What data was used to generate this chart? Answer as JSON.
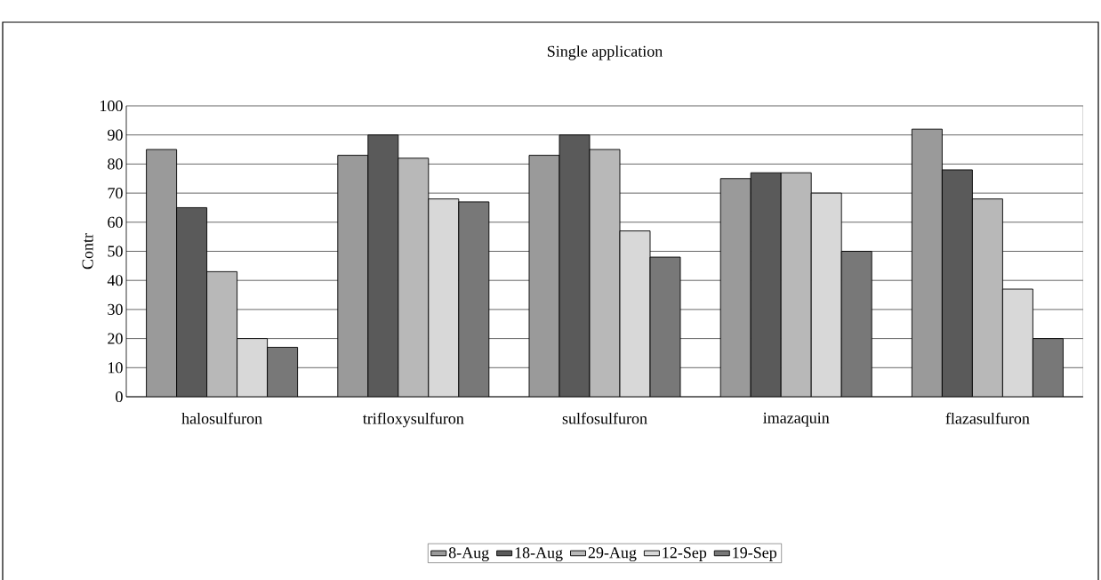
{
  "chart_data": {
    "type": "bar",
    "title": "Single application",
    "ylabel": "Contr",
    "categories": [
      "halosulfuron",
      "trifloxysulfuron",
      "sulfosulfuron",
      "imazaquin",
      "flazasulfuron"
    ],
    "series": [
      {
        "name": "8-Aug",
        "color": "#9a9a9a",
        "values": [
          85,
          83,
          83,
          75,
          92
        ]
      },
      {
        "name": "18-Aug",
        "color": "#5a5a5a",
        "values": [
          65,
          90,
          90,
          77,
          78
        ]
      },
      {
        "name": "29-Aug",
        "color": "#b8b8b8",
        "values": [
          43,
          82,
          85,
          77,
          68
        ]
      },
      {
        "name": "12-Sep",
        "color": "#d8d8d8",
        "values": [
          20,
          68,
          57,
          70,
          37
        ]
      },
      {
        "name": "19-Sep",
        "color": "#787878",
        "values": [
          17,
          67,
          48,
          50,
          20
        ]
      }
    ],
    "ylim": [
      0,
      100
    ],
    "yticks": [
      0,
      10,
      20,
      30,
      40,
      50,
      60,
      70,
      80,
      90,
      100
    ],
    "grid": "y",
    "legend": "bottom"
  }
}
